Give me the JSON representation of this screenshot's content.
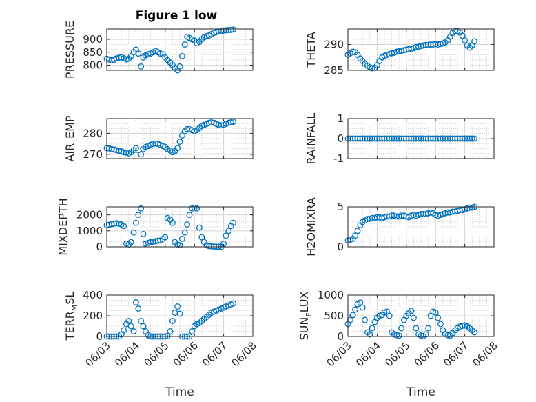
{
  "figure": {
    "title": "Figure 1 low"
  },
  "colors": {
    "marker": "#0072BD",
    "axis": "#262626",
    "grid": "#c8c8c8"
  },
  "x_ticks": [
    "06/03",
    "06/04",
    "06/05",
    "06/06",
    "06/07",
    "06/08"
  ],
  "xlabel": "Time",
  "chart_data": [
    {
      "id": "pressure",
      "type": "scatter",
      "ylabel": "PRESSURE",
      "ylim": [
        780,
        940
      ],
      "yticks": [
        {
          "v": 800,
          "t": "800"
        },
        {
          "v": 850,
          "t": "850"
        },
        {
          "v": 900,
          "t": "900"
        }
      ],
      "x": [
        3.0,
        3.08,
        3.17,
        3.25,
        3.33,
        3.42,
        3.5,
        3.58,
        3.67,
        3.75,
        3.83,
        3.92,
        4.0,
        4.08,
        4.17,
        4.25,
        4.33,
        4.42,
        4.5,
        4.58,
        4.67,
        4.75,
        4.83,
        4.92,
        5.0,
        5.08,
        5.17,
        5.25,
        5.33,
        5.42,
        5.5,
        5.58,
        5.67,
        5.75,
        5.83,
        5.92,
        6.0,
        6.08,
        6.17,
        6.25,
        6.33,
        6.42,
        6.5,
        6.58,
        6.67,
        6.75,
        6.83,
        6.92,
        7.0,
        7.08,
        7.17,
        7.25,
        7.33
      ],
      "y": [
        825,
        822,
        819,
        821,
        826,
        829,
        831,
        827,
        822,
        825,
        835,
        850,
        860,
        845,
        795,
        830,
        838,
        842,
        845,
        850,
        855,
        850,
        845,
        842,
        830,
        820,
        810,
        800,
        790,
        780,
        795,
        835,
        880,
        910,
        905,
        900,
        895,
        885,
        890,
        900,
        908,
        912,
        915,
        920,
        925,
        928,
        930,
        932,
        934,
        935,
        936,
        936,
        938
      ]
    },
    {
      "id": "theta",
      "type": "scatter",
      "ylabel": "THETA",
      "ylim": [
        285,
        293
      ],
      "yticks": [
        {
          "v": 285,
          "t": "285"
        },
        {
          "v": 290,
          "t": "290"
        }
      ],
      "x": [
        3.0,
        3.08,
        3.17,
        3.25,
        3.33,
        3.42,
        3.5,
        3.58,
        3.67,
        3.75,
        3.83,
        3.92,
        4.0,
        4.08,
        4.17,
        4.25,
        4.33,
        4.42,
        4.5,
        4.58,
        4.67,
        4.75,
        4.83,
        4.92,
        5.0,
        5.08,
        5.17,
        5.25,
        5.33,
        5.42,
        5.5,
        5.58,
        5.67,
        5.75,
        5.83,
        5.92,
        6.0,
        6.08,
        6.17,
        6.25,
        6.33,
        6.42,
        6.5,
        6.58,
        6.67,
        6.75,
        6.83,
        6.92,
        7.0,
        7.08,
        7.17,
        7.25,
        7.33
      ],
      "y": [
        288.0,
        288.3,
        288.6,
        288.5,
        288.0,
        287.3,
        286.8,
        286.3,
        285.9,
        285.6,
        285.4,
        285.5,
        286.0,
        286.8,
        287.5,
        287.8,
        288.0,
        288.1,
        288.3,
        288.4,
        288.6,
        288.7,
        288.8,
        288.9,
        289.0,
        289.1,
        289.2,
        289.3,
        289.5,
        289.6,
        289.7,
        289.8,
        289.9,
        289.9,
        290.0,
        290.0,
        290.1,
        290.0,
        290.1,
        290.2,
        290.4,
        290.8,
        291.5,
        292.2,
        292.6,
        292.6,
        292.3,
        291.7,
        290.8,
        289.8,
        289.4,
        289.8,
        290.6
      ]
    },
    {
      "id": "air_temp",
      "type": "scatter",
      "ylabel": "AIR_TEMP",
      "ylim": [
        268,
        287
      ],
      "yticks": [
        {
          "v": 270,
          "t": "270"
        },
        {
          "v": 280,
          "t": "280"
        }
      ],
      "x": [
        3.0,
        3.08,
        3.17,
        3.25,
        3.33,
        3.42,
        3.5,
        3.58,
        3.67,
        3.75,
        3.83,
        3.92,
        4.0,
        4.08,
        4.17,
        4.25,
        4.33,
        4.42,
        4.5,
        4.58,
        4.67,
        4.75,
        4.83,
        4.92,
        5.0,
        5.08,
        5.17,
        5.25,
        5.33,
        5.42,
        5.5,
        5.58,
        5.67,
        5.75,
        5.83,
        5.92,
        6.0,
        6.08,
        6.17,
        6.25,
        6.33,
        6.42,
        6.5,
        6.58,
        6.67,
        6.75,
        6.83,
        6.92,
        7.0,
        7.08,
        7.17,
        7.25,
        7.33
      ],
      "y": [
        273.0,
        272.8,
        272.5,
        272.3,
        272.0,
        271.7,
        271.4,
        271.0,
        270.8,
        270.5,
        271.0,
        272.0,
        273.0,
        272.0,
        270.0,
        272.5,
        273.5,
        274.0,
        274.5,
        275.0,
        275.2,
        275.0,
        274.5,
        274.0,
        273.5,
        272.5,
        271.8,
        271.0,
        271.5,
        273.0,
        276.0,
        279.0,
        281.0,
        282.0,
        282.0,
        281.5,
        281.0,
        281.5,
        282.5,
        283.5,
        284.0,
        284.5,
        285.0,
        285.2,
        285.0,
        284.5,
        284.0,
        283.8,
        284.0,
        284.5,
        285.0,
        285.2,
        285.5
      ]
    },
    {
      "id": "rainfall",
      "type": "scatter",
      "ylabel": "RAINFALL",
      "ylim": [
        -1,
        1
      ],
      "yticks": [
        {
          "v": -1,
          "t": "-1"
        },
        {
          "v": 0,
          "t": "0"
        },
        {
          "v": 1,
          "t": "1"
        }
      ],
      "x": [
        3.0,
        3.08,
        3.17,
        3.25,
        3.33,
        3.42,
        3.5,
        3.58,
        3.67,
        3.75,
        3.83,
        3.92,
        4.0,
        4.08,
        4.17,
        4.25,
        4.33,
        4.42,
        4.5,
        4.58,
        4.67,
        4.75,
        4.83,
        4.92,
        5.0,
        5.08,
        5.17,
        5.25,
        5.33,
        5.42,
        5.5,
        5.58,
        5.67,
        5.75,
        5.83,
        5.92,
        6.0,
        6.08,
        6.17,
        6.25,
        6.33,
        6.42,
        6.5,
        6.58,
        6.67,
        6.75,
        6.83,
        6.92,
        7.0,
        7.08,
        7.17,
        7.25,
        7.33
      ],
      "y": [
        0,
        0,
        0,
        0,
        0,
        0,
        0,
        0,
        0,
        0,
        0,
        0,
        0,
        0,
        0,
        0,
        0,
        0,
        0,
        0,
        0,
        0,
        0,
        0,
        0,
        0,
        0,
        0,
        0,
        0,
        0,
        0,
        0,
        0,
        0,
        0,
        0,
        0,
        0,
        0,
        0,
        0,
        0,
        0,
        0,
        0,
        0,
        0,
        0,
        0,
        0,
        0,
        0
      ]
    },
    {
      "id": "mixdepth",
      "type": "scatter",
      "ylabel": "MIXDEPTH",
      "ylim": [
        0,
        2500
      ],
      "yticks": [
        {
          "v": 0,
          "t": "0"
        },
        {
          "v": 1000,
          "t": "1000"
        },
        {
          "v": 2000,
          "t": "2000"
        }
      ],
      "x": [
        3.0,
        3.08,
        3.17,
        3.25,
        3.33,
        3.42,
        3.5,
        3.58,
        3.67,
        3.75,
        3.83,
        3.92,
        4.0,
        4.08,
        4.17,
        4.25,
        4.33,
        4.42,
        4.5,
        4.58,
        4.67,
        4.75,
        4.83,
        4.92,
        5.0,
        5.08,
        5.17,
        5.25,
        5.33,
        5.42,
        5.5,
        5.58,
        5.67,
        5.75,
        5.83,
        5.92,
        6.0,
        6.08,
        6.17,
        6.25,
        6.33,
        6.42,
        6.5,
        6.58,
        6.67,
        6.75,
        6.83,
        6.92,
        7.0,
        7.08,
        7.17,
        7.25,
        7.33
      ],
      "y": [
        1350,
        1380,
        1420,
        1450,
        1480,
        1450,
        1400,
        1300,
        200,
        150,
        300,
        900,
        1500,
        2000,
        2400,
        800,
        200,
        250,
        300,
        320,
        350,
        380,
        400,
        500,
        600,
        1800,
        1700,
        1500,
        300,
        150,
        100,
        500,
        900,
        1400,
        2000,
        2400,
        2450,
        2400,
        1200,
        600,
        300,
        100,
        50,
        30,
        20,
        10,
        5,
        5,
        200,
        700,
        1000,
        1300,
        1500
      ]
    },
    {
      "id": "h2omixra",
      "type": "scatter",
      "ylabel": "H2OMIXRA",
      "ylim": [
        0,
        5
      ],
      "yticks": [
        {
          "v": 0,
          "t": "0"
        },
        {
          "v": 5,
          "t": "5"
        }
      ],
      "x": [
        3.0,
        3.08,
        3.17,
        3.25,
        3.33,
        3.42,
        3.5,
        3.58,
        3.67,
        3.75,
        3.83,
        3.92,
        4.0,
        4.08,
        4.17,
        4.25,
        4.33,
        4.42,
        4.5,
        4.58,
        4.67,
        4.75,
        4.83,
        4.92,
        5.0,
        5.08,
        5.17,
        5.25,
        5.33,
        5.42,
        5.5,
        5.58,
        5.67,
        5.75,
        5.83,
        5.92,
        6.0,
        6.08,
        6.17,
        6.25,
        6.33,
        6.42,
        6.5,
        6.58,
        6.67,
        6.75,
        6.83,
        6.92,
        7.0,
        7.08,
        7.17,
        7.25,
        7.33
      ],
      "y": [
        0.8,
        0.9,
        1.0,
        1.4,
        2.0,
        2.7,
        3.1,
        3.3,
        3.5,
        3.5,
        3.6,
        3.6,
        3.7,
        3.7,
        3.6,
        3.7,
        3.8,
        3.8,
        3.9,
        3.9,
        3.8,
        3.8,
        3.9,
        3.9,
        3.8,
        3.7,
        3.9,
        4.0,
        3.9,
        4.0,
        4.1,
        4.1,
        4.1,
        4.2,
        4.3,
        4.2,
        4.0,
        3.9,
        4.0,
        4.1,
        4.2,
        4.3,
        4.3,
        4.4,
        4.4,
        4.5,
        4.6,
        4.6,
        4.7,
        4.8,
        4.9,
        4.9,
        5.0
      ]
    },
    {
      "id": "terr_msl",
      "type": "scatter",
      "ylabel": "TERR_MSL",
      "ylim": [
        0,
        400
      ],
      "yticks": [
        {
          "v": 0,
          "t": "0"
        },
        {
          "v": 200,
          "t": "200"
        },
        {
          "v": 400,
          "t": "400"
        }
      ],
      "x": [
        3.0,
        3.08,
        3.17,
        3.25,
        3.33,
        3.42,
        3.5,
        3.58,
        3.67,
        3.75,
        3.83,
        3.92,
        4.0,
        4.08,
        4.17,
        4.25,
        4.33,
        4.42,
        4.5,
        4.58,
        4.67,
        4.75,
        4.83,
        4.92,
        5.0,
        5.08,
        5.17,
        5.25,
        5.33,
        5.42,
        5.5,
        5.58,
        5.67,
        5.75,
        5.83,
        5.92,
        6.0,
        6.08,
        6.17,
        6.25,
        6.33,
        6.42,
        6.5,
        6.58,
        6.67,
        6.75,
        6.83,
        6.92,
        7.0,
        7.08,
        7.17,
        7.25,
        7.33
      ],
      "y": [
        0,
        0,
        0,
        0,
        0,
        0,
        20,
        60,
        120,
        150,
        100,
        50,
        330,
        270,
        150,
        100,
        50,
        10,
        0,
        0,
        0,
        0,
        0,
        0,
        0,
        5,
        50,
        150,
        230,
        290,
        220,
        0,
        0,
        0,
        0,
        50,
        100,
        120,
        130,
        150,
        170,
        190,
        210,
        230,
        240,
        250,
        260,
        270,
        280,
        290,
        300,
        310,
        320
      ]
    },
    {
      "id": "sun_flux",
      "type": "scatter",
      "ylabel": "SUN_FLUX",
      "ylim": [
        0,
        1000
      ],
      "yticks": [
        {
          "v": 0,
          "t": "0"
        },
        {
          "v": 500,
          "t": "500"
        },
        {
          "v": 1000,
          "t": "1000"
        }
      ],
      "x": [
        3.0,
        3.08,
        3.17,
        3.25,
        3.33,
        3.42,
        3.5,
        3.58,
        3.67,
        3.75,
        3.83,
        3.92,
        4.0,
        4.08,
        4.17,
        4.25,
        4.33,
        4.42,
        4.5,
        4.58,
        4.67,
        4.75,
        4.83,
        4.92,
        5.0,
        5.08,
        5.17,
        5.25,
        5.33,
        5.42,
        5.5,
        5.58,
        5.67,
        5.75,
        5.83,
        5.92,
        6.0,
        6.08,
        6.17,
        6.25,
        6.33,
        6.42,
        6.5,
        6.58,
        6.67,
        6.75,
        6.83,
        6.92,
        7.0,
        7.08,
        7.17,
        7.25,
        7.33
      ],
      "y": [
        300,
        400,
        520,
        650,
        780,
        820,
        700,
        400,
        100,
        50,
        200,
        350,
        450,
        500,
        520,
        580,
        600,
        500,
        100,
        50,
        30,
        20,
        200,
        400,
        500,
        560,
        620,
        450,
        200,
        50,
        20,
        10,
        50,
        200,
        500,
        600,
        580,
        450,
        300,
        150,
        60,
        30,
        20,
        80,
        150,
        200,
        240,
        260,
        270,
        250,
        200,
        150,
        100
      ]
    }
  ]
}
